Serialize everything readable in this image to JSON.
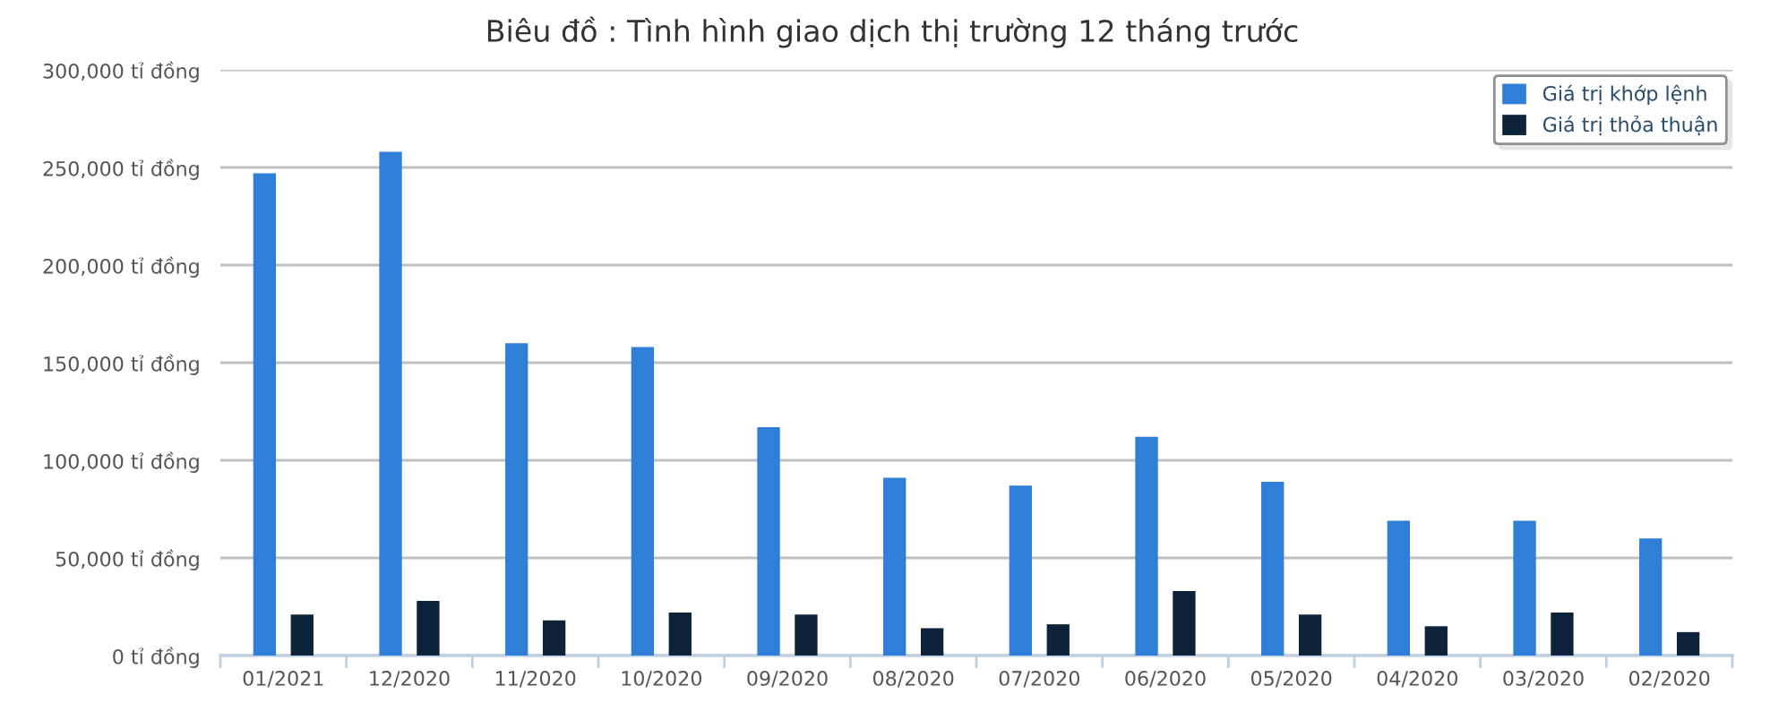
{
  "chart_data": {
    "type": "bar",
    "title": "Biêu đồ : Tình hình giao dịch thị trường 12 tháng trước",
    "categories": [
      "01/2021",
      "12/2020",
      "11/2020",
      "10/2020",
      "09/2020",
      "08/2020",
      "07/2020",
      "06/2020",
      "05/2020",
      "04/2020",
      "03/2020",
      "02/2020"
    ],
    "series": [
      {
        "name": "Giá trị khớp lệnh",
        "color": "#2f7ed8",
        "values": [
          247000,
          258000,
          160000,
          158000,
          117000,
          91000,
          87000,
          112000,
          89000,
          69000,
          69000,
          60000
        ]
      },
      {
        "name": "Giá trị thỏa thuận",
        "color": "#0d233a",
        "values": [
          21000,
          28000,
          18000,
          22000,
          21000,
          14000,
          16000,
          33000,
          21000,
          15000,
          22000,
          12000
        ]
      }
    ],
    "ylim": [
      0,
      300000
    ],
    "yticks": [
      {
        "value": 0,
        "label": "0 tỉ đồng"
      },
      {
        "value": 50000,
        "label": "50,000 tỉ đồng"
      },
      {
        "value": 100000,
        "label": "100,000 tỉ đồng"
      },
      {
        "value": 150000,
        "label": "150,000 tỉ đồng"
      },
      {
        "value": 200000,
        "label": "200,000 tỉ đồng"
      },
      {
        "value": 250000,
        "label": "250,000 tỉ đồng"
      },
      {
        "value": 300000,
        "label": "300,000 tỉ đồng"
      }
    ],
    "grid": "y",
    "legend": "top right"
  }
}
